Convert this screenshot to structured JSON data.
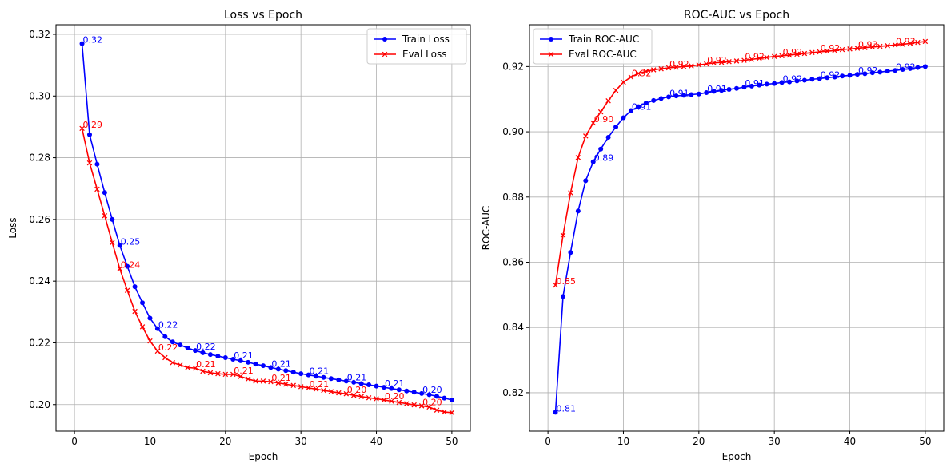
{
  "chart_data": [
    {
      "type": "line",
      "title": "Loss vs Epoch",
      "xlabel": "Epoch",
      "ylabel": "Loss",
      "xlim": [
        -2.45,
        52.45
      ],
      "ylim": [
        0.1914,
        0.3231
      ],
      "xticks": [
        0,
        10,
        20,
        30,
        40,
        50
      ],
      "yticks": [
        0.2,
        0.22,
        0.24,
        0.26,
        0.28,
        0.3,
        0.32
      ],
      "ytick_decimals": 2,
      "grid": true,
      "legend_position": "upper right",
      "x": [
        1,
        2,
        3,
        4,
        5,
        6,
        7,
        8,
        9,
        10,
        11,
        12,
        13,
        14,
        15,
        16,
        17,
        18,
        19,
        20,
        21,
        22,
        23,
        24,
        25,
        26,
        27,
        28,
        29,
        30,
        31,
        32,
        33,
        34,
        35,
        36,
        37,
        38,
        39,
        40,
        41,
        42,
        43,
        44,
        45,
        46,
        47,
        48,
        49,
        50
      ],
      "series": [
        {
          "name": "Train Loss",
          "color": "#0000ff",
          "marker": "circle",
          "values": [
            0.317,
            0.2875,
            0.2779,
            0.2687,
            0.26,
            0.2516,
            0.2448,
            0.2382,
            0.233,
            0.228,
            0.2246,
            0.222,
            0.2203,
            0.2193,
            0.2183,
            0.2175,
            0.2168,
            0.2162,
            0.2157,
            0.2152,
            0.2147,
            0.2142,
            0.2137,
            0.2131,
            0.2126,
            0.212,
            0.2115,
            0.211,
            0.2105,
            0.21,
            0.2096,
            0.2092,
            0.2088,
            0.2084,
            0.208,
            0.2076,
            0.2072,
            0.2068,
            0.2064,
            0.206,
            0.2056,
            0.2052,
            0.2048,
            0.2044,
            0.204,
            0.2036,
            0.2032,
            0.2027,
            0.2021,
            0.2015
          ],
          "label_indices": [
            0,
            5,
            10,
            15,
            20,
            25,
            30,
            35,
            40,
            45
          ],
          "point_labels": [
            "0.32",
            "0.25",
            "0.22",
            "0.22",
            "0.21",
            "0.21",
            "0.21",
            "0.21",
            "0.21",
            "0.20"
          ]
        },
        {
          "name": "Eval Loss",
          "color": "#ff0000",
          "marker": "x",
          "values": [
            0.2895,
            0.2783,
            0.2698,
            0.2612,
            0.2525,
            0.244,
            0.237,
            0.2302,
            0.2252,
            0.2206,
            0.2173,
            0.2152,
            0.2136,
            0.2128,
            0.212,
            0.2118,
            0.2108,
            0.2103,
            0.21,
            0.2098,
            0.2098,
            0.2091,
            0.2083,
            0.2076,
            0.2076,
            0.2074,
            0.207,
            0.2066,
            0.2062,
            0.2058,
            0.2054,
            0.205,
            0.2046,
            0.2042,
            0.2038,
            0.2035,
            0.203,
            0.2026,
            0.2022,
            0.2019,
            0.2015,
            0.2011,
            0.2007,
            0.2003,
            0.1999,
            0.1996,
            0.1992,
            0.1982,
            0.1976,
            0.1974
          ],
          "label_indices": [
            0,
            5,
            10,
            15,
            20,
            25,
            30,
            35,
            40,
            45
          ],
          "point_labels": [
            "0.29",
            "0.24",
            "0.22",
            "0.21",
            "0.21",
            "0.21",
            "0.21",
            "0.20",
            "0.20",
            "0.20"
          ]
        }
      ]
    },
    {
      "type": "line",
      "title": "ROC-AUC vs Epoch",
      "xlabel": "Epoch",
      "ylabel": "ROC-AUC",
      "xlim": [
        -2.45,
        52.45
      ],
      "ylim": [
        0.80823,
        0.93282
      ],
      "xticks": [
        0,
        10,
        20,
        30,
        40,
        50
      ],
      "yticks": [
        0.82,
        0.84,
        0.86,
        0.88,
        0.9,
        0.92
      ],
      "ytick_decimals": 2,
      "grid": true,
      "legend_position": "upper left",
      "x": [
        1,
        2,
        3,
        4,
        5,
        6,
        7,
        8,
        9,
        10,
        11,
        12,
        13,
        14,
        15,
        16,
        17,
        18,
        19,
        20,
        21,
        22,
        23,
        24,
        25,
        26,
        27,
        28,
        29,
        30,
        31,
        32,
        33,
        34,
        35,
        36,
        37,
        38,
        39,
        40,
        41,
        42,
        43,
        44,
        45,
        46,
        47,
        48,
        49,
        50
      ],
      "series": [
        {
          "name": "Train ROC-AUC",
          "color": "#0000ff",
          "marker": "circle",
          "values": [
            0.814,
            0.8495,
            0.863,
            0.8757,
            0.885,
            0.8908,
            0.8947,
            0.8983,
            0.9015,
            0.9043,
            0.9065,
            0.9077,
            0.9088,
            0.9096,
            0.9102,
            0.9107,
            0.911,
            0.9112,
            0.9114,
            0.9116,
            0.912,
            0.9124,
            0.9127,
            0.913,
            0.9133,
            0.9137,
            0.914,
            0.9143,
            0.9146,
            0.9148,
            0.9151,
            0.9153,
            0.9156,
            0.9158,
            0.9161,
            0.9163,
            0.9166,
            0.9168,
            0.9171,
            0.9173,
            0.9176,
            0.9178,
            0.9181,
            0.9183,
            0.9186,
            0.9188,
            0.9191,
            0.9194,
            0.9197,
            0.92
          ],
          "label_indices": [
            0,
            5,
            10,
            15,
            20,
            25,
            30,
            35,
            40,
            45
          ],
          "point_labels": [
            "0.81",
            "0.89",
            "0.91",
            "0.91",
            "0.91",
            "0.91",
            "0.92",
            "0.92",
            "0.92",
            "0.92"
          ]
        },
        {
          "name": "Eval ROC-AUC",
          "color": "#ff0000",
          "marker": "x",
          "values": [
            0.853,
            0.8683,
            0.8813,
            0.8921,
            0.8987,
            0.9027,
            0.9061,
            0.9095,
            0.9127,
            0.9152,
            0.9168,
            0.9179,
            0.9185,
            0.919,
            0.9193,
            0.9196,
            0.9198,
            0.92,
            0.9202,
            0.9205,
            0.9208,
            0.9211,
            0.9213,
            0.9215,
            0.9217,
            0.9219,
            0.9222,
            0.9225,
            0.9228,
            0.9231,
            0.9233,
            0.9235,
            0.9238,
            0.924,
            0.9243,
            0.9245,
            0.9247,
            0.9249,
            0.9252,
            0.9254,
            0.9256,
            0.9258,
            0.926,
            0.9262,
            0.9264,
            0.9266,
            0.9268,
            0.9271,
            0.9274,
            0.9277
          ],
          "label_indices": [
            0,
            5,
            10,
            15,
            20,
            25,
            30,
            35,
            40,
            45
          ],
          "point_labels": [
            "0.85",
            "0.90",
            "0.92",
            "0.92",
            "0.92",
            "0.92",
            "0.92",
            "0.92",
            "0.93",
            "0.93"
          ]
        }
      ]
    }
  ]
}
